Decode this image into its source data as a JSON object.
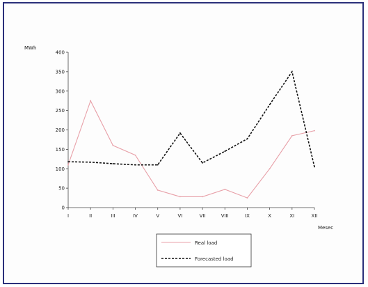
{
  "colors": {
    "frame": "#2a2f7a",
    "series_1": "#e8a0a8",
    "series_2": "#111111",
    "axis": "#444444"
  },
  "chart_data": {
    "type": "line",
    "title": "",
    "xlabel": "Mesec",
    "ylabel": "MWh",
    "categories": [
      "I",
      "II",
      "III",
      "IV",
      "V",
      "VI",
      "VII",
      "VIII",
      "IX",
      "X",
      "XI",
      "XII"
    ],
    "ylim": [
      0,
      400
    ],
    "yticks": [
      0,
      50,
      100,
      150,
      200,
      250,
      300,
      350,
      400
    ],
    "grid": false,
    "legend_position": "bottom",
    "series": [
      {
        "name": "Real load",
        "style": "solid",
        "values": [
          110,
          275,
          160,
          135,
          45,
          28,
          28,
          47,
          25,
          100,
          185,
          198
        ]
      },
      {
        "name": "Forecasted load",
        "style": "dashed",
        "values": [
          118,
          117,
          113,
          110,
          110,
          192,
          115,
          145,
          177,
          265,
          350,
          105
        ]
      }
    ]
  }
}
